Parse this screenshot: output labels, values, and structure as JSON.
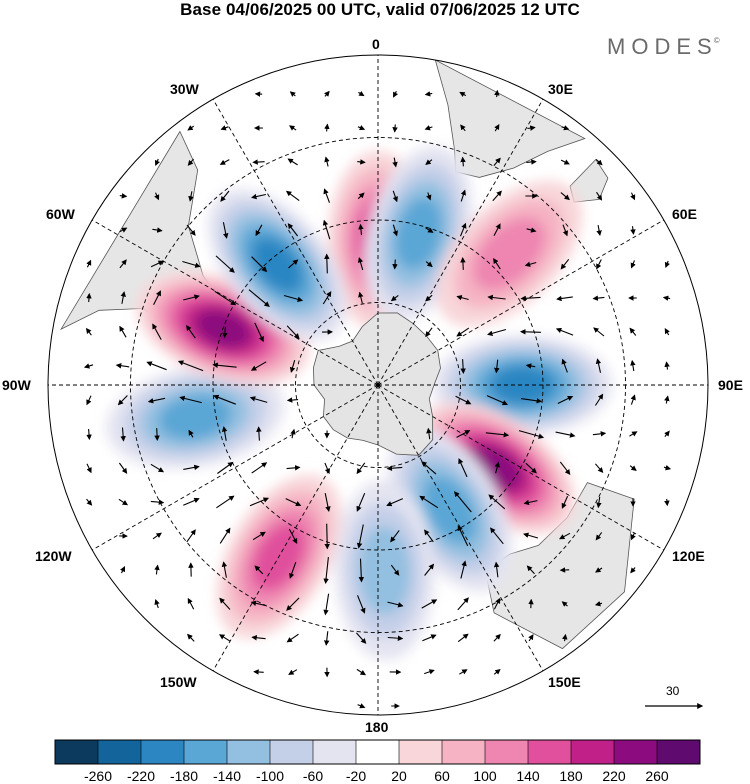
{
  "title": "Base 04/06/2025 00 UTC, valid 07/06/2025 12 UTC",
  "logo": {
    "text": "MODES",
    "mark": "©"
  },
  "longitude_labels": {
    "lon_0": "0",
    "lon_30e": "30E",
    "lon_60e": "60E",
    "lon_90e": "90E",
    "lon_120e": "120E",
    "lon_150e": "150E",
    "lon_180": "180",
    "lon_150w": "150W",
    "lon_120w": "120W",
    "lon_90w": "90W",
    "lon_60w": "60W",
    "lon_30w": "30W"
  },
  "reference_vector": {
    "label": "30"
  },
  "colorbar": {
    "colors": [
      "#0b3a5e",
      "#13649a",
      "#2c86c2",
      "#5aa6d5",
      "#93bfe0",
      "#c4cfe8",
      "#e4e4f1",
      "#ffffff",
      "#f8d6d9",
      "#f5b3c3",
      "#ee86b1",
      "#e0509c",
      "#c02087",
      "#8c0b7e",
      "#5e0a6e"
    ],
    "tick_labels": [
      "-260",
      "-220",
      "-180",
      "-140",
      "-100",
      "-60",
      "-20",
      "20",
      "60",
      "100",
      "140",
      "180",
      "220",
      "260"
    ]
  },
  "anomaly_centers": [
    {
      "lon": 0,
      "lat": -55,
      "value": 170
    },
    {
      "lon": 15,
      "lat": -52,
      "value": -150
    },
    {
      "lon": 45,
      "lat": -45,
      "value": 110
    },
    {
      "lon": 90,
      "lat": -55,
      "value": -190
    },
    {
      "lon": 125,
      "lat": -55,
      "value": 240
    },
    {
      "lon": 150,
      "lat": -55,
      "value": -160
    },
    {
      "lon": 178,
      "lat": -45,
      "value": -140
    },
    {
      "lon": -150,
      "lat": -42,
      "value": 170
    },
    {
      "lon": -100,
      "lat": -45,
      "value": -160
    },
    {
      "lon": -70,
      "lat": -50,
      "value": 250
    },
    {
      "lon": -40,
      "lat": -52,
      "value": -210
    }
  ]
}
